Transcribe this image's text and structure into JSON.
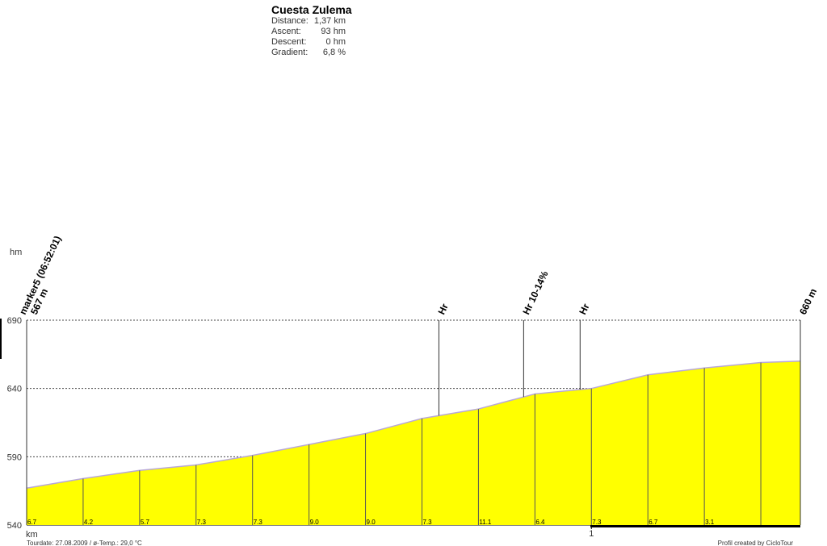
{
  "chart_data": {
    "type": "area",
    "title": "Cuesta Zulema",
    "stats": [
      {
        "label": "Distance:",
        "value": "1,37 km"
      },
      {
        "label": "Ascent:",
        "value": "93 hm"
      },
      {
        "label": "Descent:",
        "value": "0 hm"
      },
      {
        "label": "Gradient:",
        "value": "6,8 %"
      }
    ],
    "y_label": "hm",
    "x_label": "km",
    "x": [
      0,
      0.1,
      0.2,
      0.3,
      0.4,
      0.5,
      0.6,
      0.7,
      0.8,
      0.9,
      1.0,
      1.1,
      1.2,
      1.3,
      1.37
    ],
    "values": [
      567,
      574,
      580,
      584,
      591,
      599,
      607,
      618,
      625,
      636,
      640,
      650,
      655,
      659,
      660
    ],
    "color": "#ffff00",
    "line_color": "#b8a8d8",
    "xlim": [
      0,
      1.37
    ],
    "xticks": [
      1
    ],
    "ylim": [
      540,
      690
    ],
    "yticks": [
      540,
      590,
      640,
      690
    ],
    "grid": true,
    "gradient_x": [
      0,
      0.1,
      0.2,
      0.3,
      0.4,
      0.5,
      0.6,
      0.7,
      0.8,
      0.9,
      1.0,
      1.1,
      1.2
    ],
    "gradients": [
      6.7,
      4.2,
      5.7,
      7.3,
      7.3,
      {
        "value": 9.0,
        "label": "9.0"
      },
      {
        "value": 9.0,
        "label": "9.0"
      },
      7.3,
      11.1,
      6.4,
      7.3,
      6.7,
      3.1
    ],
    "markers": [
      {
        "x": 0,
        "labels": [
          "marker5 (06:52:01)",
          "567 m"
        ]
      },
      {
        "x": 0.73,
        "labels": [
          "Hr"
        ]
      },
      {
        "x": 0.88,
        "labels": [
          "Hr 10-14%"
        ]
      },
      {
        "x": 0.98,
        "labels": [
          "Hr"
        ]
      },
      {
        "x": 1.37,
        "labels": [
          "660 m"
        ]
      }
    ],
    "footnote": "Tourdate: 27.08.2009  /  ø-Temp.: 29,0 °C",
    "credit": "Profil created by CicloTour"
  }
}
